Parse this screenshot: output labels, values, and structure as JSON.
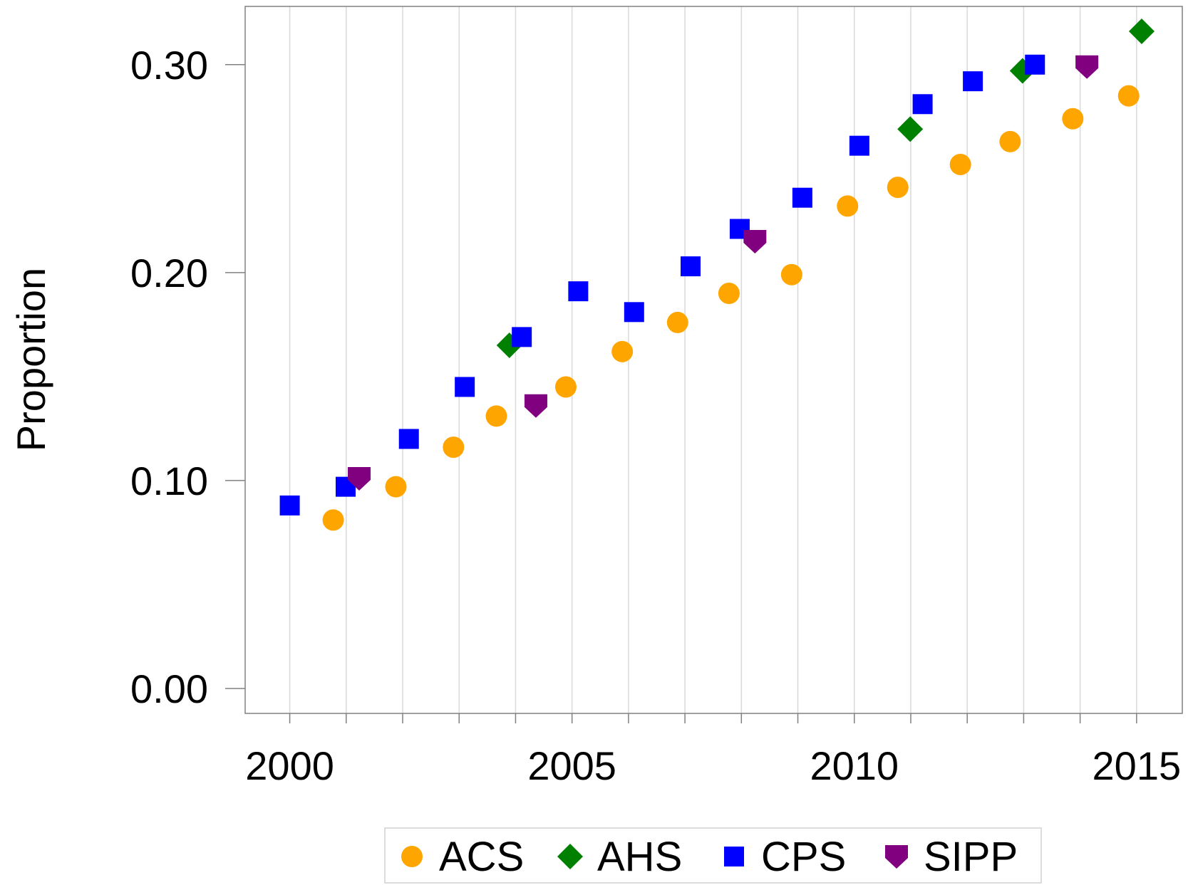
{
  "chart_data": {
    "type": "scatter",
    "y_label": "Proportion",
    "xlim": [
      1999.21,
      2015.81
    ],
    "ylim": [
      -0.012,
      0.328
    ],
    "xticks": [
      2000,
      2005,
      2010,
      2015
    ],
    "xminorticks": [
      2001,
      2002,
      2003,
      2004,
      2006,
      2007,
      2008,
      2009,
      2011,
      2012,
      2013,
      2014
    ],
    "yticks": [
      {
        "value": 0,
        "label": "0.00"
      },
      {
        "value": 0.1,
        "label": "0.10"
      },
      {
        "value": 0.2,
        "label": "0.20"
      },
      {
        "value": 0.3,
        "label": "0.30"
      }
    ],
    "grid": true,
    "legend": "bottom",
    "series": [
      {
        "name": "ACS",
        "color": "#ffa500",
        "marker": "circle",
        "x": [
          2000.77,
          2001.88,
          2002.9,
          2003.66,
          2004.89,
          2005.89,
          2006.87,
          2007.78,
          2008.89,
          2009.88,
          2010.77,
          2011.88,
          2012.76,
          2013.87,
          2014.86
        ],
        "values": [
          0.081,
          0.097,
          0.116,
          0.131,
          0.145,
          0.162,
          0.176,
          0.19,
          0.199,
          0.232,
          0.241,
          0.252,
          0.263,
          0.274,
          0.285
        ]
      },
      {
        "name": "AHS",
        "color": "#008000",
        "marker": "diamond",
        "x": [
          2003.89,
          2010.99,
          2012.98,
          2015.09
        ],
        "values": [
          0.165,
          0.269,
          0.297,
          0.316
        ]
      },
      {
        "name": "CPS",
        "color": "#0000ff",
        "marker": "square",
        "x": [
          2000.0,
          2000.99,
          2002.11,
          2003.1,
          2004.11,
          2005.11,
          2006.1,
          2007.1,
          2007.97,
          2009.08,
          2010.09,
          2011.21,
          2012.1,
          2013.2
        ],
        "values": [
          0.088,
          0.097,
          0.12,
          0.145,
          0.169,
          0.191,
          0.181,
          0.203,
          0.221,
          0.236,
          0.261,
          0.281,
          0.292,
          0.3
        ]
      },
      {
        "name": "SIPP",
        "color": "#800080",
        "marker": "shield",
        "x": [
          2001.23,
          2004.36,
          2008.24,
          2014.12
        ],
        "values": [
          0.101,
          0.136,
          0.215,
          0.299
        ]
      }
    ]
  }
}
